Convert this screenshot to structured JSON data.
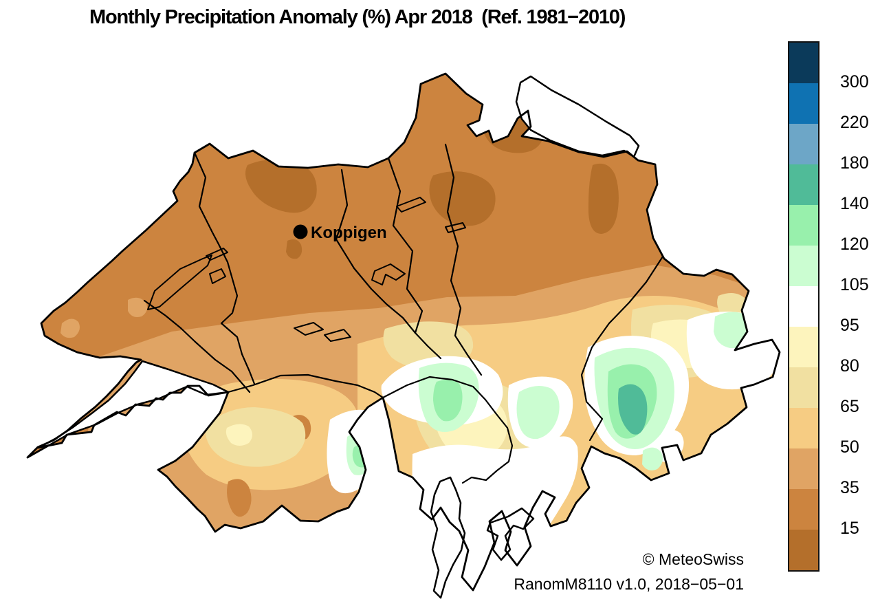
{
  "title": "Monthly Precipitation Anomaly (%) Apr 2018  (Ref. 1981−2010)",
  "station": {
    "name": "Koppigen",
    "marker_color": "#000000"
  },
  "attribution": "© MeteoSwiss",
  "version_line": "RanomM8110 v1.0, 2018−05−01",
  "map": {
    "region": "Switzerland",
    "border_color": "#000000",
    "background": "#ffffff"
  },
  "colorbar": {
    "unit": "%",
    "tick_labels": [
      "300",
      "220",
      "180",
      "140",
      "120",
      "105",
      "95",
      "80",
      "65",
      "50",
      "35",
      "15"
    ],
    "segment_colors_top_to_bottom": [
      "#0b3a5a",
      "#0f72b2",
      "#6da6c7",
      "#50bb98",
      "#98f0ac",
      "#cbfdd1",
      "#ffffff",
      "#fdf4bd",
      "#f1e0a1",
      "#f6cc83",
      "#e0a464",
      "#cc843f",
      "#b46f2b"
    ],
    "ranges": [
      {
        "label": ">300",
        "color": "#0b3a5a"
      },
      {
        "label": "220–300",
        "color": "#0f72b2"
      },
      {
        "label": "180–220",
        "color": "#6da6c7"
      },
      {
        "label": "140–180",
        "color": "#50bb98"
      },
      {
        "label": "120–140",
        "color": "#98f0ac"
      },
      {
        "label": "105–120",
        "color": "#cbfdd1"
      },
      {
        "label": "95–105",
        "color": "#ffffff"
      },
      {
        "label": "80–95",
        "color": "#fdf4bd"
      },
      {
        "label": "65–80",
        "color": "#f1e0a1"
      },
      {
        "label": "50–65",
        "color": "#f6cc83"
      },
      {
        "label": "35–50",
        "color": "#e0a464"
      },
      {
        "label": "15–35",
        "color": "#cc843f"
      },
      {
        "label": "<15",
        "color": "#b46f2b"
      }
    ]
  }
}
